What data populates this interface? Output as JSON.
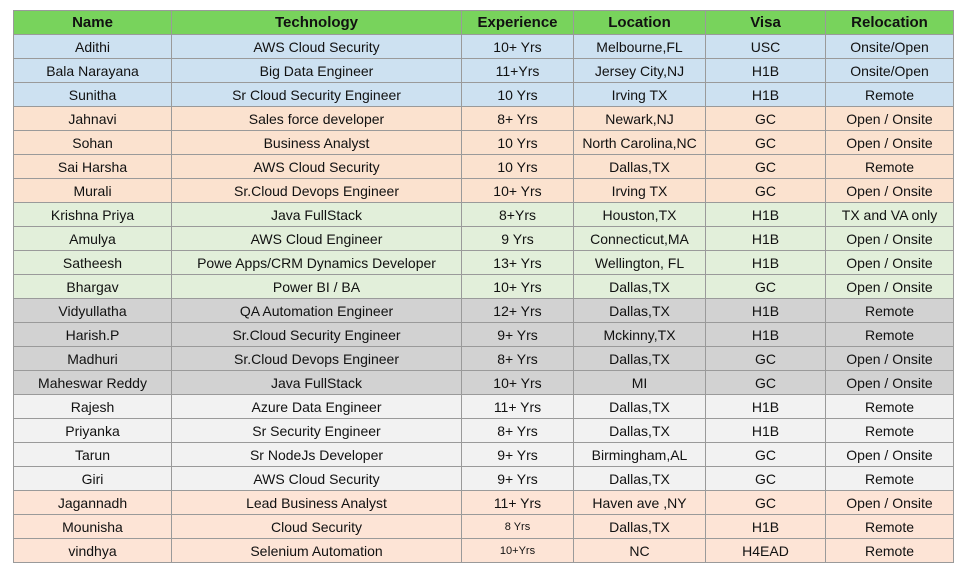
{
  "table": {
    "columns": [
      "Name",
      "Technology",
      "Experience",
      "Location",
      "Visa",
      "Relocation"
    ],
    "rows": [
      [
        "Adithi",
        "AWS Cloud Security",
        "10+ Yrs",
        "Melbourne,FL",
        "USC",
        "Onsite/Open"
      ],
      [
        "Bala Narayana",
        "Big Data Engineer",
        "11+Yrs",
        "Jersey City,NJ",
        "H1B",
        "Onsite/Open"
      ],
      [
        "Sunitha",
        "Sr Cloud Security Engineer",
        "10 Yrs",
        "Irving TX",
        "H1B",
        "Remote"
      ],
      [
        "Jahnavi",
        "Sales force developer",
        "8+ Yrs",
        "Newark,NJ",
        "GC",
        "Open / Onsite"
      ],
      [
        "Sohan",
        "Business Analyst",
        "10 Yrs",
        "North Carolina,NC",
        "GC",
        "Open / Onsite"
      ],
      [
        "Sai Harsha",
        "AWS Cloud Security",
        "10 Yrs",
        "Dallas,TX",
        "GC",
        "Remote"
      ],
      [
        "Murali",
        "Sr.Cloud Devops Engineer",
        "10+ Yrs",
        "Irving TX",
        "GC",
        "Open / Onsite"
      ],
      [
        "Krishna Priya",
        "Java FullStack",
        "8+Yrs",
        "Houston,TX",
        "H1B",
        "TX and VA only"
      ],
      [
        "Amulya",
        "AWS Cloud Engineer",
        "9 Yrs",
        "Connecticut,MA",
        "H1B",
        "Open / Onsite"
      ],
      [
        "Satheesh",
        "Powe Apps/CRM Dynamics Developer",
        "13+ Yrs",
        "Wellington, FL",
        "H1B",
        "Open / Onsite"
      ],
      [
        "Bhargav",
        "Power BI / BA",
        "10+ Yrs",
        "Dallas,TX",
        "GC",
        "Open / Onsite"
      ],
      [
        "Vidyullatha",
        "QA Automation Engineer",
        "12+ Yrs",
        "Dallas,TX",
        "H1B",
        "Remote"
      ],
      [
        "Harish.P",
        "Sr.Cloud Security Engineer",
        "9+ Yrs",
        "Mckinny,TX",
        "H1B",
        "Remote"
      ],
      [
        "Madhuri",
        "Sr.Cloud Devops Engineer",
        "8+ Yrs",
        "Dallas,TX",
        "GC",
        "Open / Onsite"
      ],
      [
        "Maheswar Reddy",
        "Java FullStack",
        "10+ Yrs",
        "MI",
        "GC",
        "Open / Onsite"
      ],
      [
        "Rajesh",
        "Azure Data Engineer",
        "11+ Yrs",
        "Dallas,TX",
        "H1B",
        "Remote"
      ],
      [
        "Priyanka",
        "Sr Security Engineer",
        "8+ Yrs",
        "Dallas,TX",
        "H1B",
        "Remote"
      ],
      [
        "Tarun",
        "Sr NodeJs Developer",
        "9+ Yrs",
        "Birmingham,AL",
        "GC",
        "Open / Onsite"
      ],
      [
        "Giri",
        "AWS Cloud Security",
        "9+ Yrs",
        "Dallas,TX",
        "GC",
        "Remote"
      ],
      [
        "Jagannadh",
        "Lead Business Analyst",
        "11+ Yrs",
        "Haven ave ,NY",
        "GC",
        "Open / Onsite"
      ],
      [
        "Mounisha",
        "Cloud Security",
        "8 Yrs",
        "Dallas,TX",
        "H1B",
        "Remote"
      ],
      [
        "vindhya",
        "Selenium Automation",
        "10+Yrs",
        "NC",
        "H4EAD",
        "Remote"
      ]
    ]
  }
}
